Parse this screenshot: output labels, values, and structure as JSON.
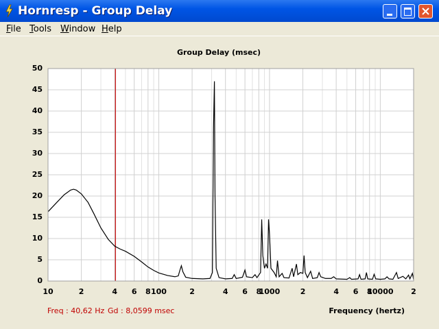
{
  "window": {
    "title": "Hornresp - Group Delay"
  },
  "menu": [
    "File",
    "Tools",
    "Window",
    "Help"
  ],
  "status": {
    "freq": "Freq : 40,62 Hz",
    "gd": "Gd : 8,0599 msec"
  },
  "chart_data": {
    "type": "line",
    "title": "Group Delay (msec)",
    "xlabel": "Frequency (hertz)",
    "xscale": "log",
    "grid": true,
    "cursor_x": 40.62,
    "cursor_color": "#c00000",
    "xlim": [
      10,
      20000
    ],
    "ylim": [
      0,
      50
    ],
    "yticks": [
      0,
      5,
      10,
      15,
      20,
      25,
      30,
      35,
      40,
      45,
      50
    ],
    "xticks": [
      10,
      {
        "value": 20,
        "label": "2"
      },
      {
        "value": 40,
        "label": "4"
      },
      {
        "value": 60,
        "label": "6"
      },
      {
        "value": 80,
        "label": "8"
      },
      100,
      {
        "value": 200,
        "label": "2"
      },
      {
        "value": 400,
        "label": "4"
      },
      {
        "value": 600,
        "label": "6"
      },
      {
        "value": 800,
        "label": "8"
      },
      1000,
      {
        "value": 2000,
        "label": "2"
      },
      {
        "value": 4000,
        "label": "4"
      },
      {
        "value": 6000,
        "label": "6"
      },
      {
        "value": 8000,
        "label": "8"
      },
      10000,
      {
        "value": 20000,
        "label": "2"
      }
    ],
    "xminor": [
      30,
      50,
      70,
      90,
      300,
      500,
      700,
      900,
      3000,
      5000,
      7000,
      9000
    ],
    "x": [
      10,
      12,
      14,
      16,
      17,
      18,
      20,
      23,
      26,
      30,
      35,
      40,
      45,
      50,
      60,
      70,
      80,
      90,
      100,
      120,
      140,
      150,
      155,
      160,
      165,
      175,
      200,
      250,
      290,
      305,
      312,
      318,
      322,
      330,
      350,
      400,
      460,
      480,
      500,
      570,
      600,
      620,
      700,
      740,
      770,
      830,
      850,
      870,
      900,
      930,
      960,
      980,
      1000,
      1030,
      1100,
      1150,
      1180,
      1220,
      1300,
      1350,
      1500,
      1600,
      1650,
      1750,
      1800,
      1900,
      2000,
      2050,
      2100,
      2200,
      2350,
      2450,
      2700,
      2800,
      2900,
      3200,
      3600,
      3800,
      4000,
      5000,
      5300,
      5500,
      6300,
      6500,
      6700,
      7300,
      7500,
      7700,
      8500,
      8800,
      9100,
      10000,
      11000,
      11500,
      12000,
      13000,
      14000,
      14500,
      16000,
      17000,
      18000,
      18500,
      19500,
      20000
    ],
    "series": [
      {
        "color": "#000000",
        "values": [
          16.3,
          18.5,
          20.3,
          21.4,
          21.6,
          21.4,
          20.5,
          18.5,
          15.8,
          12.5,
          9.8,
          8.2,
          7.5,
          7,
          5.8,
          4.5,
          3.3,
          2.5,
          1.9,
          1.3,
          1,
          1.2,
          2.5,
          3.6,
          2.2,
          0.9,
          0.6,
          0.5,
          0.6,
          2,
          36,
          47,
          20,
          3,
          0.8,
          0.5,
          0.6,
          1.5,
          0.6,
          0.9,
          2.6,
          1,
          0.8,
          1.5,
          0.8,
          2,
          14.5,
          6,
          3,
          4,
          3,
          14.5,
          11,
          3,
          2,
          1,
          4.8,
          1,
          1.8,
          0.8,
          0.7,
          3,
          1,
          4,
          1.5,
          2,
          1.8,
          6,
          2,
          0.8,
          2.3,
          0.6,
          0.8,
          2,
          1,
          0.6,
          0.6,
          1,
          0.5,
          0.4,
          0.8,
          0.4,
          0.5,
          1.5,
          0.4,
          0.5,
          2,
          0.5,
          0.4,
          1.6,
          0.5,
          0.4,
          0.5,
          1,
          0.5,
          0.4,
          2,
          0.6,
          1.1,
          0.5,
          1.4,
          0.5,
          1.8,
          0.3
        ]
      }
    ]
  }
}
